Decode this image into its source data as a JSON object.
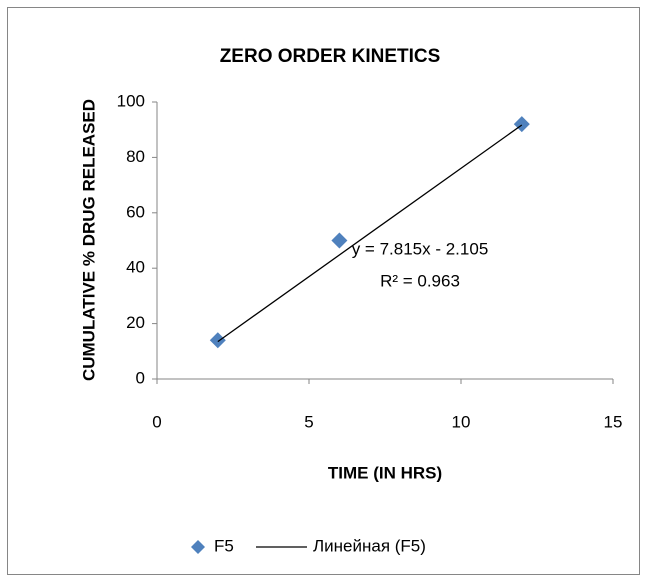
{
  "chart_data": {
    "type": "scatter",
    "title": "ZERO ORDER KINETICS",
    "x_label": "TIME (IN HRS)",
    "y_label": "CUMULATIVE % DRUG RELEASED",
    "series": [
      {
        "name": "F5",
        "color": "#4f81bd",
        "x": [
          2,
          6,
          12
        ],
        "values": [
          14,
          50,
          92
        ]
      },
      {
        "name": "Линейная (F5)",
        "color": "#000000",
        "kind": "trendline",
        "x": [
          2,
          12
        ],
        "values": [
          13.5,
          91.7
        ]
      }
    ],
    "annotations": [
      "y = 7.815x - 2.105",
      "R² = 0.963"
    ],
    "xlim": [
      0,
      15
    ],
    "xticks": [
      0,
      5,
      10,
      15
    ],
    "ylim": [
      0,
      100
    ],
    "yticks": [
      0,
      20,
      40,
      60,
      80,
      100
    ],
    "grid": false,
    "legend": "bottom"
  }
}
